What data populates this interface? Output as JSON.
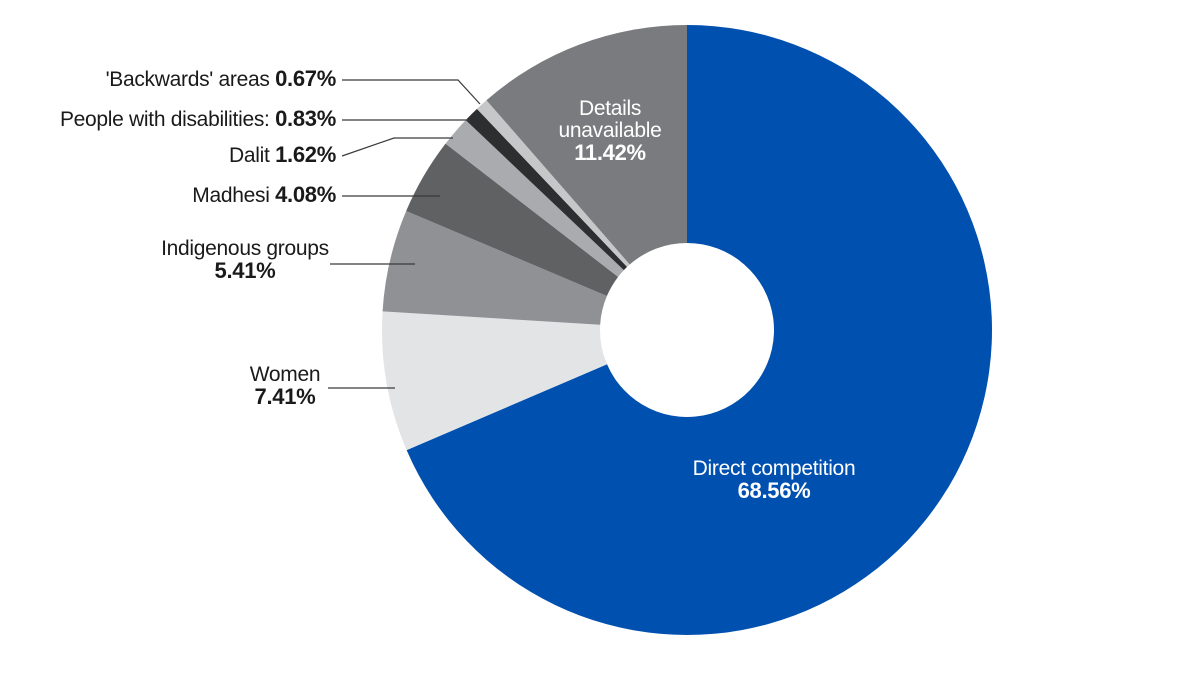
{
  "chart_data": {
    "type": "pie",
    "donut": true,
    "slices": [
      {
        "label": "Direct competition",
        "value": 68.56,
        "value_label": "68.56%",
        "color": "#0050b0"
      },
      {
        "label": "Women",
        "value": 7.41,
        "value_label": "7.41%",
        "color": "#e3e4e6"
      },
      {
        "label": "Indigenous groups",
        "value": 5.41,
        "value_label": "5.41%",
        "color": "#8f9194"
      },
      {
        "label": "Madhesi",
        "value": 4.08,
        "value_label": "4.08%",
        "color": "#606163"
      },
      {
        "label": "Dalit",
        "value": 1.62,
        "value_label": "1.62%",
        "color": "#a9abae"
      },
      {
        "label": "People with disabilities:",
        "value": 0.83,
        "value_label": "0.83%",
        "color": "#2d2e30"
      },
      {
        "label": "'Backwards' areas",
        "value": 0.67,
        "value_label": "0.67%",
        "color": "#c6c7c9"
      },
      {
        "label": "Details unavailable",
        "value": 11.42,
        "value_label": "11.42%",
        "color": "#7a7b7e"
      }
    ]
  },
  "labels": {
    "direct": {
      "name": "Direct competition",
      "pct": "68.56%"
    },
    "details": {
      "name_line1": "Details",
      "name_line2": "unavailable",
      "pct": "11.42%"
    },
    "women": {
      "name": "Women",
      "pct": "7.41%"
    },
    "indigenous": {
      "name": "Indigenous groups",
      "pct": "5.41%"
    },
    "madhesi": {
      "name": "Madhesi",
      "pct": "4.08%"
    },
    "dalit": {
      "name": "Dalit",
      "pct": "1.62%"
    },
    "disabilities": {
      "name": "People with disabilities:",
      "pct": "0.83%"
    },
    "backwards": {
      "name": "'Backwards' areas",
      "pct": "0.67%"
    }
  }
}
